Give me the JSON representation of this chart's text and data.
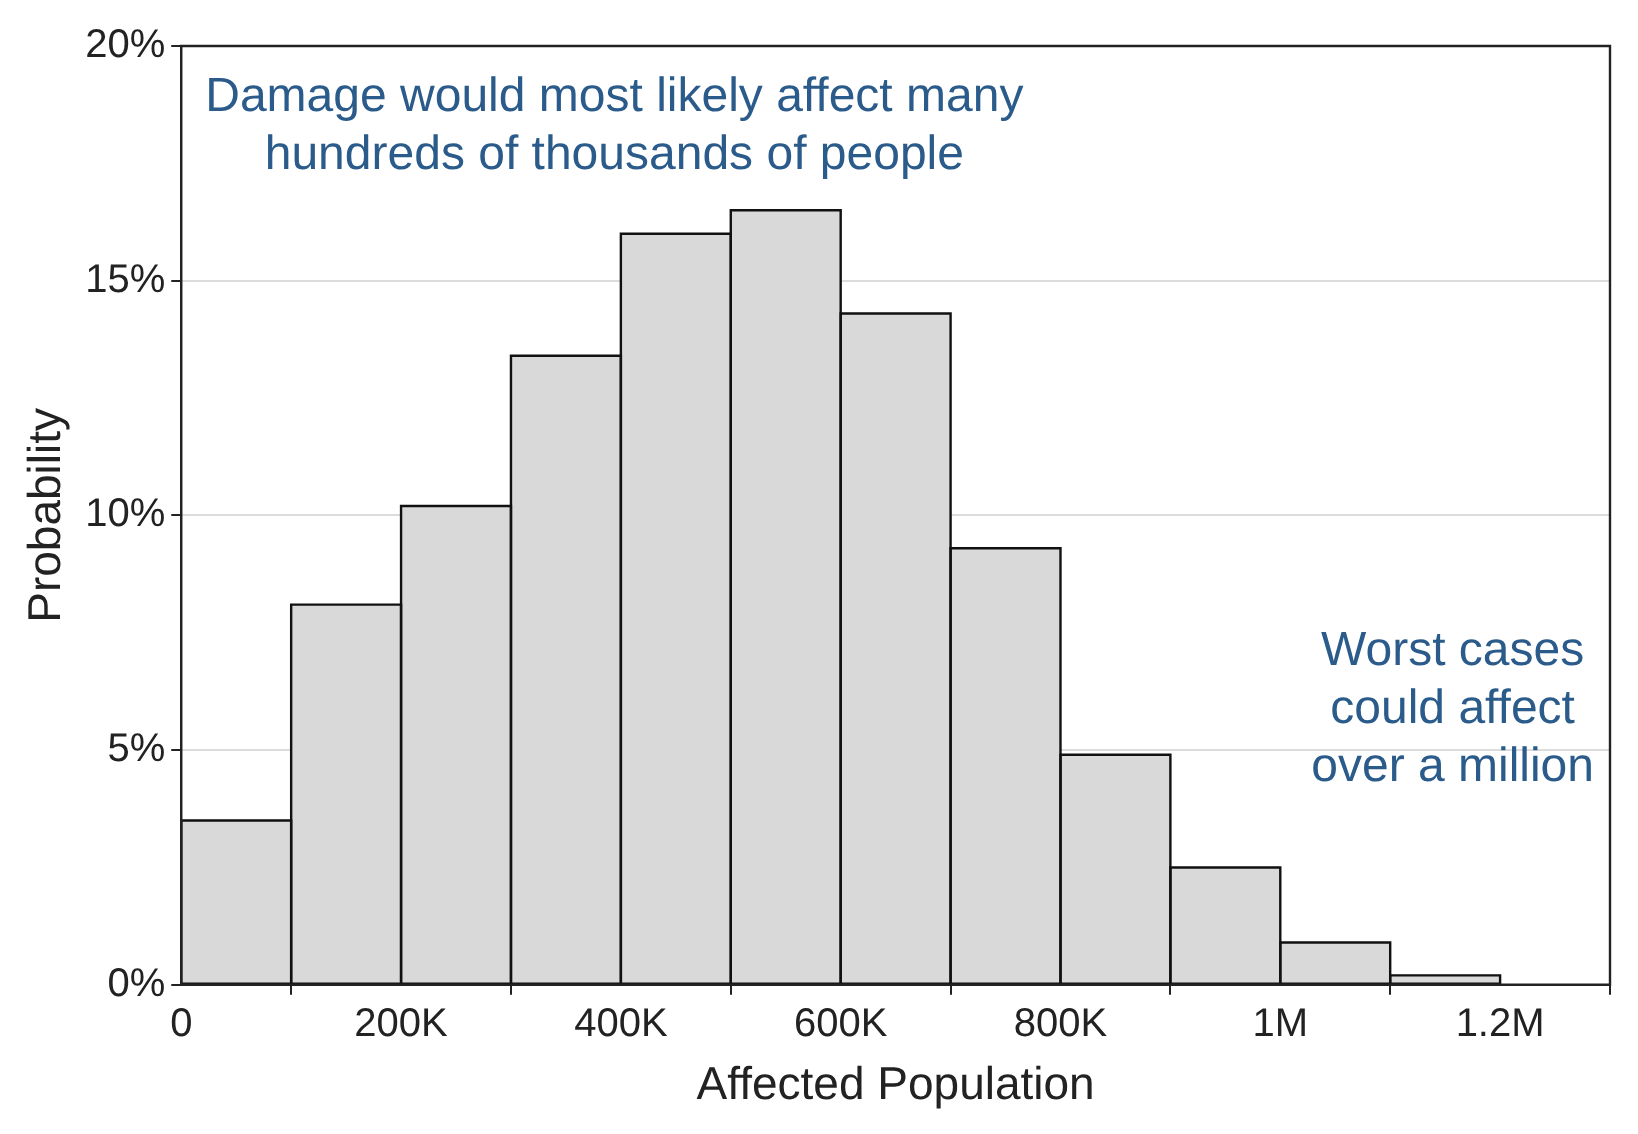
{
  "chart_data": {
    "type": "histogram",
    "xlabel": "Affected Population",
    "ylabel": "Probability",
    "annotations": [
      "Damage would most likely affect many\nhundreds of thousands of people",
      "Worst cases\ncould affect\nover a million"
    ],
    "bins": [
      0,
      100000,
      200000,
      300000,
      400000,
      500000,
      600000,
      700000,
      800000,
      900000,
      1000000,
      1100000,
      1200000
    ],
    "values": [
      3.5,
      8.1,
      10.2,
      13.4,
      16.0,
      16.5,
      14.3,
      9.3,
      4.9,
      2.5,
      0.9,
      0.2
    ],
    "color": "#d9d9d9",
    "xlim": [
      0,
      1300000
    ],
    "xticks": [
      {
        "value": 0,
        "label": "0"
      },
      {
        "value": 200000,
        "label": "200K"
      },
      {
        "value": 400000,
        "label": "400K"
      },
      {
        "value": 600000,
        "label": "600K"
      },
      {
        "value": 800000,
        "label": "800K"
      },
      {
        "value": 1000000,
        "label": "1M"
      },
      {
        "value": 1200000,
        "label": "1.2M"
      }
    ],
    "ylim": [
      0,
      20
    ],
    "yticks": [
      {
        "value": 0,
        "label": "0%"
      },
      {
        "value": 5,
        "label": "5%"
      },
      {
        "value": 10,
        "label": "10%"
      },
      {
        "value": 15,
        "label": "15%"
      },
      {
        "value": 20,
        "label": "20%"
      }
    ],
    "grid": "y"
  }
}
